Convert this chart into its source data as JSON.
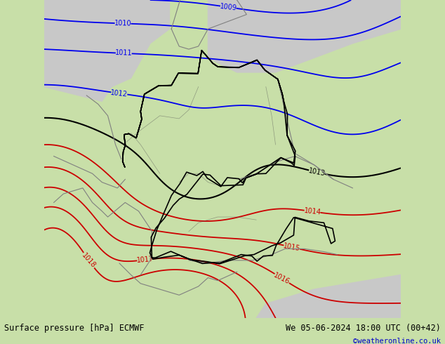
{
  "title_left": "Surface pressure [hPa] ECMWF",
  "title_right": "We 05-06-2024 18:00 UTC (00+42)",
  "credit": "©weatheronline.co.uk",
  "land_color": "#c8dfa8",
  "sea_color": "#c8c8c8",
  "fig_bg_color": "#c8dfa8",
  "bottom_bar_color": "#c8dfa8",
  "bottom_text_color": "#000000",
  "credit_color": "#0000cc",
  "blue_contour_color": "#0000ee",
  "red_contour_color": "#cc0000",
  "black_contour_color": "#000000",
  "gray_border_color": "#808080",
  "contour_linewidth": 1.3,
  "label_fontsize": 7,
  "fig_width": 6.34,
  "fig_height": 4.9,
  "dpi": 100,
  "lon_min": 2.0,
  "lon_max": 20.5,
  "lat_min": 45.5,
  "lat_max": 56.5
}
